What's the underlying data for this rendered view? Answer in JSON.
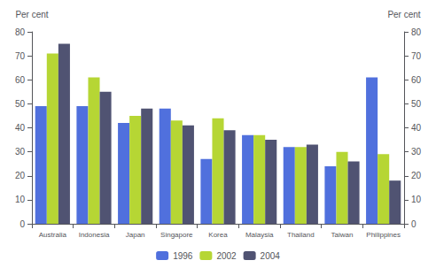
{
  "chart_data": {
    "type": "bar",
    "categories": [
      "Australia",
      "Indonesia",
      "Japan",
      "Singapore",
      "Korea",
      "Malaysia",
      "Thailand",
      "Taiwan",
      "Philippines"
    ],
    "series": [
      {
        "name": "1996",
        "values": [
          49,
          49,
          42,
          48,
          27,
          37,
          32,
          24,
          61
        ]
      },
      {
        "name": "2002",
        "values": [
          71,
          61,
          45,
          43,
          44,
          37,
          32,
          30,
          29
        ]
      },
      {
        "name": "2004",
        "values": [
          75,
          55,
          48,
          41,
          39,
          35,
          33,
          26,
          18
        ]
      }
    ],
    "ylabel": "Per cent",
    "y2label": "Per cent",
    "ylim": [
      0,
      80
    ],
    "yticks": [
      0,
      10,
      20,
      30,
      40,
      50,
      60,
      70,
      80
    ],
    "y2lim": [
      0,
      80
    ],
    "y2ticks": [
      0,
      10,
      20,
      30,
      40,
      50,
      60,
      70,
      80
    ],
    "grid": false,
    "legend": "bottom"
  }
}
